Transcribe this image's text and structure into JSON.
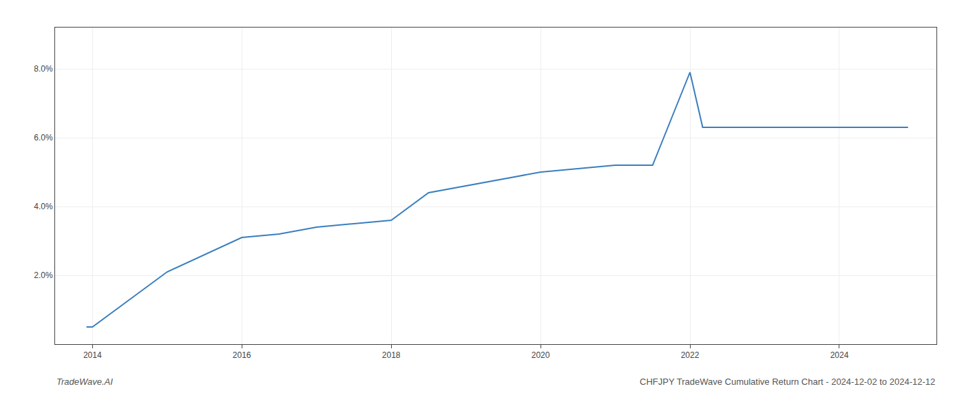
{
  "chart_data": {
    "type": "line",
    "x": [
      2013.92,
      2014.0,
      2015.0,
      2016.0,
      2016.5,
      2017.0,
      2017.5,
      2018.0,
      2018.5,
      2019.0,
      2019.5,
      2020.0,
      2020.5,
      2021.0,
      2021.5,
      2022.0,
      2022.17,
      2022.5,
      2023.0,
      2023.5,
      2024.0,
      2024.92
    ],
    "values": [
      0.005,
      0.005,
      0.021,
      0.031,
      0.032,
      0.034,
      0.035,
      0.036,
      0.044,
      0.046,
      0.048,
      0.05,
      0.051,
      0.052,
      0.052,
      0.079,
      0.063,
      0.063,
      0.063,
      0.063,
      0.063,
      0.063
    ],
    "color": "#3a7ebf",
    "xlim": [
      2013.5,
      2025.3
    ],
    "xticks": [
      2014,
      2016,
      2018,
      2020,
      2022,
      2024
    ],
    "ylim": [
      0.0,
      0.092
    ],
    "yticks": [
      {
        "value": 0.02,
        "label": "2.0%"
      },
      {
        "value": 0.04,
        "label": "4.0%"
      },
      {
        "value": 0.06,
        "label": "6.0%"
      },
      {
        "value": 0.08,
        "label": "8.0%"
      }
    ],
    "grid": true,
    "annotations": [
      "TradeWave.AI",
      "CHFJPY TradeWave Cumulative Return Chart - 2024-12-02 to 2024-12-12"
    ]
  }
}
